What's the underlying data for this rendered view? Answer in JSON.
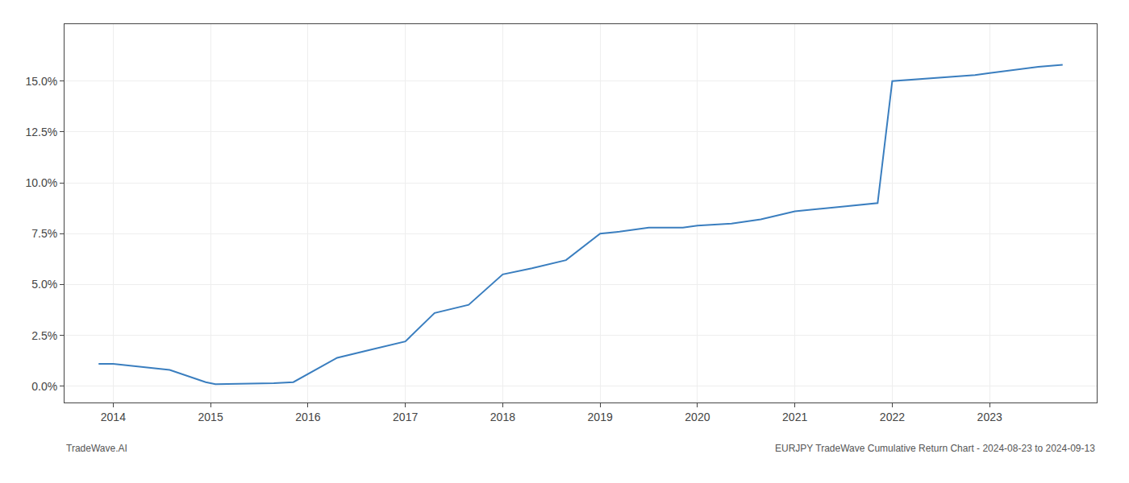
{
  "chart_data": {
    "type": "line",
    "x": [
      2013.85,
      2014.0,
      2014.58,
      2014.95,
      2015.05,
      2015.65,
      2015.85,
      2016.3,
      2016.65,
      2017.0,
      2017.3,
      2017.65,
      2018.0,
      2018.3,
      2018.65,
      2019.0,
      2019.2,
      2019.5,
      2019.85,
      2020.0,
      2020.35,
      2020.65,
      2021.0,
      2021.4,
      2021.65,
      2021.85,
      2022.0,
      2022.55,
      2022.85,
      2023.0,
      2023.5,
      2023.75
    ],
    "values": [
      0.011,
      0.011,
      0.008,
      0.002,
      0.001,
      0.0015,
      0.002,
      0.014,
      0.018,
      0.022,
      0.036,
      0.04,
      0.055,
      0.058,
      0.062,
      0.075,
      0.076,
      0.078,
      0.078,
      0.079,
      0.08,
      0.082,
      0.086,
      0.088,
      0.089,
      0.09,
      0.15,
      0.152,
      0.153,
      0.154,
      0.157,
      0.158
    ],
    "color": "#3a7ebf",
    "grid": true,
    "annotations": [
      "TradeWave.AI",
      "EURJPY TradeWave Cumulative Return Chart - 2024-08-23 to 2024-09-13"
    ],
    "xlim": [
      2013.5,
      2024.1
    ],
    "xticks": [
      2014,
      2015,
      2016,
      2017,
      2018,
      2019,
      2020,
      2021,
      2022,
      2023
    ],
    "ylim": [
      -0.008,
      0.178
    ],
    "yticks": [
      {
        "value": 0,
        "label": "0.0%"
      },
      {
        "value": 0.025,
        "label": "2.5%"
      },
      {
        "value": 0.05,
        "label": "5.0%"
      },
      {
        "value": 0.075,
        "label": "7.5%"
      },
      {
        "value": 0.1,
        "label": "10.0%"
      },
      {
        "value": 0.125,
        "label": "12.5%"
      },
      {
        "value": 0.15,
        "label": "15.0%"
      }
    ]
  }
}
